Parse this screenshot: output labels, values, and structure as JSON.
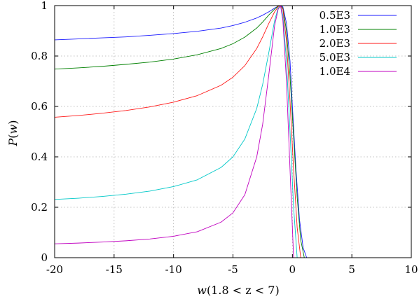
{
  "chart_data": {
    "type": "line",
    "title": "",
    "xlabel": {
      "var": "w",
      "range": "(1.8 < z < 7)"
    },
    "ylabel": {
      "name": "P",
      "var": "w"
    },
    "xlim": [
      -20,
      10
    ],
    "ylim": [
      0,
      1
    ],
    "xticks": [
      -20,
      -15,
      -10,
      -5,
      0,
      5,
      10
    ],
    "yticks": [
      0,
      0.2,
      0.4,
      0.6,
      0.8,
      1
    ],
    "ytick_labels": [
      "0",
      "0.2",
      "0.4",
      "0.6",
      "0.8",
      "1"
    ],
    "grid": true,
    "legend_position": "top-right",
    "series": [
      {
        "name": "0.5E3",
        "color": "#1a1aff",
        "x": [
          -20,
          -18,
          -16,
          -14,
          -12,
          -10,
          -8,
          -6,
          -5,
          -4,
          -3,
          -2.5,
          -2,
          -1.5,
          -1.2,
          -1.0,
          -0.8,
          -0.5,
          -0.2,
          0.0,
          0.3,
          0.6,
          0.9,
          1.2
        ],
        "y": [
          0.864,
          0.868,
          0.872,
          0.876,
          0.882,
          0.889,
          0.898,
          0.911,
          0.921,
          0.934,
          0.951,
          0.962,
          0.975,
          0.99,
          0.998,
          1.0,
          0.995,
          0.93,
          0.78,
          0.6,
          0.35,
          0.15,
          0.04,
          0.0
        ]
      },
      {
        "name": "1.0E3",
        "color": "#008000",
        "x": [
          -20,
          -18,
          -16,
          -14,
          -12,
          -10,
          -8,
          -6,
          -5,
          -4,
          -3,
          -2.5,
          -2,
          -1.5,
          -1.2,
          -1.0,
          -0.8,
          -0.5,
          -0.2,
          0.1,
          0.4,
          0.7,
          1.0
        ],
        "y": [
          0.748,
          0.753,
          0.759,
          0.767,
          0.776,
          0.788,
          0.805,
          0.83,
          0.849,
          0.875,
          0.911,
          0.935,
          0.962,
          0.986,
          0.998,
          1.0,
          0.99,
          0.9,
          0.72,
          0.48,
          0.24,
          0.07,
          0.0
        ]
      },
      {
        "name": "2.0E3",
        "color": "#ff1a1a",
        "x": [
          -20,
          -18,
          -16,
          -14,
          -12,
          -10,
          -8,
          -6,
          -5,
          -4,
          -3,
          -2.5,
          -2,
          -1.5,
          -1.2,
          -1.0,
          -0.8,
          -0.5,
          -0.2,
          0.1,
          0.4,
          0.7
        ],
        "y": [
          0.557,
          0.564,
          0.573,
          0.584,
          0.598,
          0.617,
          0.643,
          0.684,
          0.716,
          0.762,
          0.83,
          0.876,
          0.928,
          0.975,
          0.996,
          1.0,
          0.985,
          0.86,
          0.62,
          0.35,
          0.12,
          0.0
        ]
      },
      {
        "name": "5.0E3",
        "color": "#00c8c8",
        "x": [
          -20,
          -18,
          -16,
          -14,
          -12,
          -10,
          -8,
          -6,
          -5,
          -4,
          -3,
          -2.5,
          -2,
          -1.5,
          -1.2,
          -1.0,
          -0.8,
          -0.5,
          -0.2,
          0.1,
          0.4
        ],
        "y": [
          0.231,
          0.236,
          0.243,
          0.252,
          0.264,
          0.282,
          0.309,
          0.358,
          0.4,
          0.471,
          0.592,
          0.688,
          0.81,
          0.94,
          0.99,
          1.0,
          0.96,
          0.78,
          0.5,
          0.2,
          0.0
        ]
      },
      {
        "name": "1.0E4",
        "color": "#c000c0",
        "x": [
          -20,
          -18,
          -16,
          -14,
          -12,
          -10,
          -8,
          -6,
          -5,
          -4,
          -3,
          -2.5,
          -2,
          -1.5,
          -1.2,
          -1.0,
          -0.8,
          -0.5,
          -0.2,
          0.1
        ],
        "y": [
          0.055,
          0.058,
          0.062,
          0.067,
          0.074,
          0.085,
          0.103,
          0.141,
          0.178,
          0.25,
          0.4,
          0.53,
          0.72,
          0.92,
          0.985,
          1.0,
          0.94,
          0.7,
          0.35,
          0.0
        ]
      }
    ]
  }
}
